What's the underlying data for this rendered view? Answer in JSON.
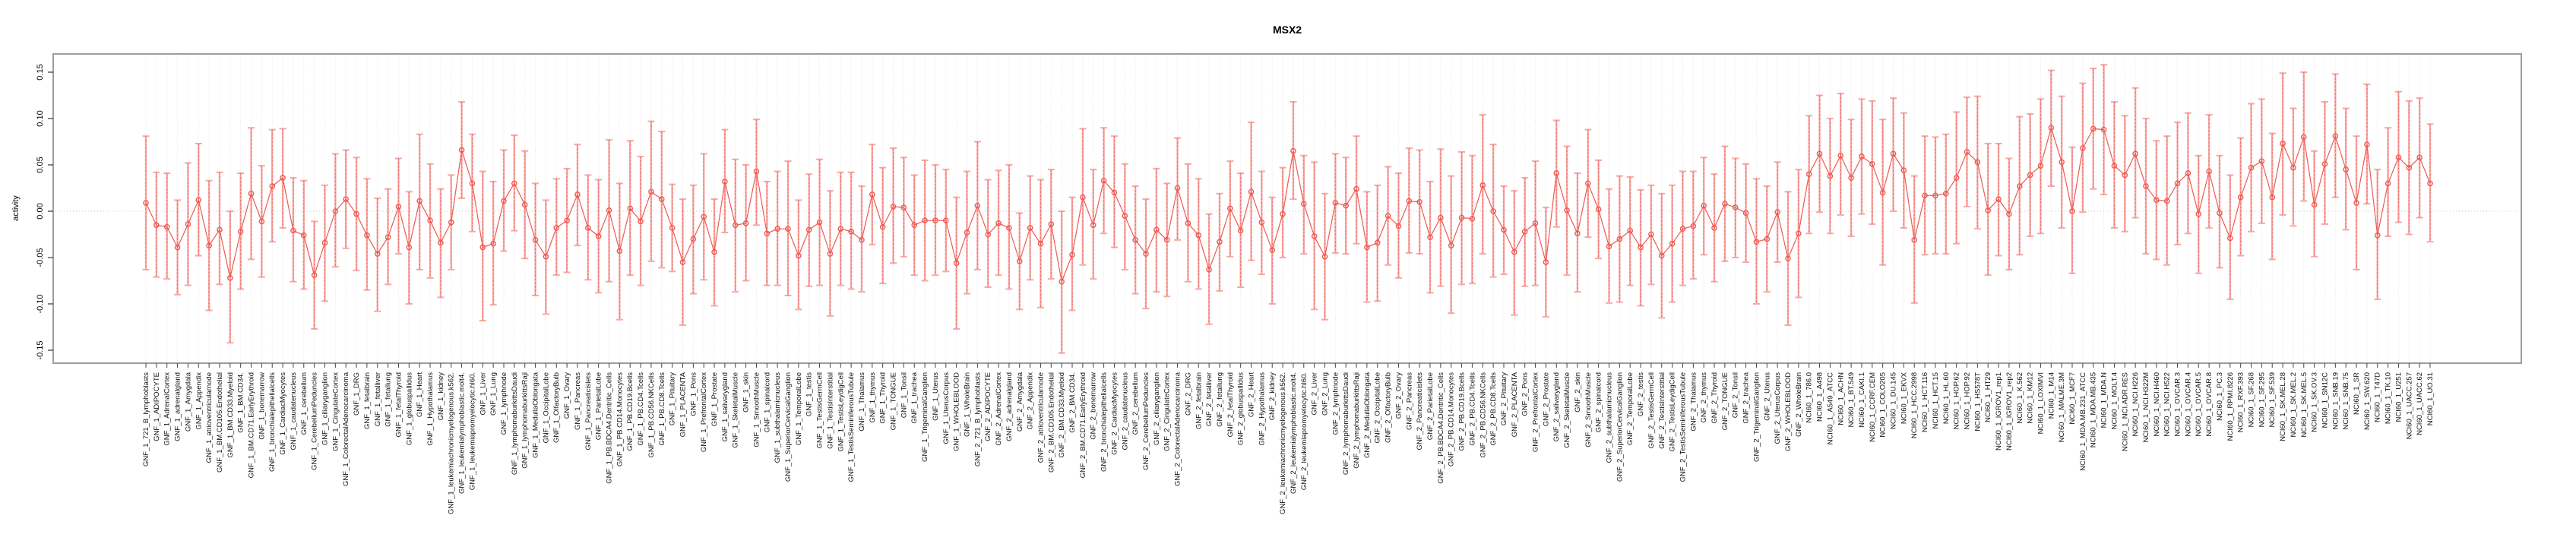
{
  "title": "MSX2",
  "chart_data": {
    "type": "scatter",
    "subtype": "point-estimates-with-error-bars",
    "title": "MSX2",
    "xlabel": "",
    "ylabel": "activity",
    "ylim": [
      -0.17,
      0.17
    ],
    "yticks": [
      "0.15",
      "0.10",
      "0.05",
      "0.00",
      "-0.05",
      "-0.10",
      "-0.15"
    ],
    "ytick_values": [
      0.15,
      0.1,
      0.05,
      0.0,
      -0.05,
      -0.1,
      -0.15
    ],
    "grid": "dotted vertical line per category; dotted horizontal line at 0",
    "legend_position": "none",
    "point_color": "#ee5a52",
    "bar_color": "#f7a8a4",
    "stem_color": "#ef655e",
    "grid_color": "#dedede",
    "zero_line_color": "#c6c6c6",
    "box_color": "#9e9e9e",
    "categories": [
      "GNF_1_721_B_lymphoblasts",
      "GNF_1_ADIPOCYTE",
      "GNF_1_AdrenalCortex",
      "GNF_1_adrenalgland",
      "GNF_1_Amygdala",
      "GNF_1_Appendix",
      "GNF_1_atrioventricularnode",
      "GNF_1_BM.CD105.Endothelial",
      "GNF_1_BM.CD33.Myeloid",
      "GNF_1_BM.CD34.",
      "GNF_1_BM.CD71.EarlyErythroid",
      "GNF_1_bonemarrow",
      "GNF_1_bronchialepithelialcells",
      "GNF_1_CardiacMyocytes",
      "GNF_1_caudatenucleus",
      "GNF_1_cerebellum",
      "GNF_1_CerebellumPeduncles",
      "GNF_1_ciliaryganglion",
      "GNF_1_CingulateCortex",
      "GNF_1_ColorectalAdenocarcinoma",
      "GNF_1_DRG",
      "GNF_1_fetalbrain",
      "GNF_1_fetalliver",
      "GNF_1_fetallung",
      "GNF_1_fetalThyroid",
      "GNF_1_globuspallidus",
      "GNF_1_Heart",
      "GNF_1_Hypothalamus",
      "GNF_1_kidney",
      "GNF_1_leukemiachronicmyelogenous.k562.",
      "GNF_1_leukemialymphoblastic.molt4.",
      "GNF_1_leukemiapromyelocytic.hl60.",
      "GNF_1_Liver",
      "GNF_1_Lung",
      "GNF_1_lymphnode",
      "GNF_1_lymphomaburkittsDaudi",
      "GNF_1_lymphomaburkittsRaji",
      "GNF_1_MedullaOblongata",
      "GNF_1_OccipitalLobe",
      "GNF_1_OlfactoryBulb",
      "GNF_1_Ovary",
      "GNF_1_Pancreas",
      "GNF_1_Pancreaticislets",
      "GNF_1_ParietalLobe",
      "GNF_1_PB.BDCA4.Dentritic_Cells",
      "GNF_1_PB.CD14.Monocytes",
      "GNF_1_PB.CD19.Bcells",
      "GNF_1_PB.CD4.Tcells",
      "GNF_1_PB.CD56.NKCells",
      "GNF_1_PB.CD8.Tcells",
      "GNF_1_Pituitary",
      "GNF_1_PLACENTA",
      "GNF_1_Pons",
      "GNF_1_PrefrontalCortex",
      "GNF_1_Prostate",
      "GNF_1_salivarygland",
      "GNF_1_SkeletalMuscle",
      "GNF_1_skin",
      "GNF_1_SmoothMuscle",
      "GNF_1_spinalcord",
      "GNF_1_subthalamicnucleus",
      "GNF_1_SuperiorCervicalGanglion",
      "GNF_1_TemporalLobe",
      "GNF_1_testis",
      "GNF_1_TestisGermCell",
      "GNF_1_TestisInterstitial",
      "GNF_1_TestisLeydigCell",
      "GNF_1_TestisSeminiferousTubule",
      "GNF_1_Thalamus",
      "GNF_1_thymus",
      "GNF_1_Thyroid",
      "GNF_1_TONGUE",
      "GNF_1_Tonsil",
      "GNF_1_trachea",
      "GNF_1_TrigeminalGanglion",
      "GNF_1_Uterus",
      "GNF_1_UterusCorpus",
      "GNF_1_WHOLEBLOOD",
      "GNF_1_WholeBrain",
      "GNF_2_721_B_lymphoblasts",
      "GNF_2_ADIPOCYTE",
      "GNF_2_AdrenalCortex",
      "GNF_2_adrenalgland",
      "GNF_2_Amygdala",
      "GNF_2_Appendix",
      "GNF_2_atrioventricularnode",
      "GNF_2_BM.CD105.Endothelial",
      "GNF_2_BM.CD33.Myeloid",
      "GNF_2_BM.CD34.",
      "GNF_2_BM.CD71.EarlyErythroid",
      "GNF_2_bonemarrow",
      "GNF_2_bronchialepithelialcells",
      "GNF_2_CardiacMyocytes",
      "GNF_2_caudatenucleus",
      "GNF_2_cerebellum",
      "GNF_2_CerebellumPeduncles",
      "GNF_2_ciliaryganglion",
      "GNF_2_CingulateCortex",
      "GNF_2_ColorectalAdenocarcinoma",
      "GNF_2_DRG",
      "GNF_2_fetalbrain",
      "GNF_2_fetalliver",
      "GNF_2_fetallung",
      "GNF_2_fetalThyroid",
      "GNF_2_globuspallidus",
      "GNF_2_Heart",
      "GNF_2_Hypothalamus",
      "GNF_2_kidney",
      "GNF_2_leukemiachronicmyelogenous.k562.",
      "GNF_2_leukemialymphoblastic.molt4.",
      "GNF_2_leukemiapromyelocytic.hl60.",
      "GNF_2_Liver",
      "GNF_2_Lung",
      "GNF_2_lymphnode",
      "GNF_2_lymphomaburkittsDaudi",
      "GNF_2_lymphomaburkittsRaji",
      "GNF_2_MedullaOblongata",
      "GNF_2_OccipitalLobe",
      "GNF_2_OlfactoryBulb",
      "GNF_2_Ovary",
      "GNF_2_Pancreas",
      "GNF_2_Pancreaticislets",
      "GNF_2_ParietalLobe",
      "GNF_2_PB.BDCA4.Dentritic_Cells",
      "GNF_2_PB.CD14.Monocytes",
      "GNF_2_PB.CD19.Bcells",
      "GNF_2_PB.CD4.Tcells",
      "GNF_2_PB.CD56.NKCells",
      "GNF_2_PB.CD8.Tcells",
      "GNF_2_Pituitary",
      "GNF_2_PLACENTA",
      "GNF_2_Pons",
      "GNF_2_PrefrontalCortex",
      "GNF_2_Prostate",
      "GNF_2_salivarygland",
      "GNF_2_SkeletalMuscle",
      "GNF_2_skin",
      "GNF_2_SmoothMuscle",
      "GNF_2_spinalcord",
      "GNF_2_subthalamicnucleus",
      "GNF_2_SuperiorCervicalGanglion",
      "GNF_2_TemporalLobe",
      "GNF_2_testis",
      "GNF_2_TestisGermCell",
      "GNF_2_TestisInterstitial",
      "GNF_2_TestisLeydigCell",
      "GNF_2_TestisSeminiferousTubule",
      "GNF_2_Thalamus",
      "GNF_2_thymus",
      "GNF_2_Thyroid",
      "GNF_2_TONGUE",
      "GNF_2_Tonsil",
      "GNF_2_trachea",
      "GNF_2_TrigeminalGanglion",
      "GNF_2_Uterus",
      "GNF_2_UterusCorpus",
      "GNF_2_WHOLEBLOOD",
      "GNF_2_WholeBrain",
      "NCI60_1_786.0",
      "NCI60_1_A498",
      "NCI60_1_A549_ATCC",
      "NCI60_1_ACHN",
      "NCI60_1_BT.549",
      "NCI60_1_CAKI.1",
      "NCI60_1_CCRF.CEM",
      "NCI60_1_COLO205",
      "NCI60_1_DU.145",
      "NCI60_1_EKVX",
      "NCI60_1_HCC.2998",
      "NCI60_1_HCT.116",
      "NCI60_1_HCT.15",
      "NCI60_1_HL.60",
      "NCI60_1_HOP.62",
      "NCI60_1_HOP.92",
      "NCI60_1_HS578T",
      "NCI60_1_HT29",
      "NCI60_1_IGROV1_rep1",
      "NCI60_1_IGROV1_rep2",
      "NCI60_1_K.562",
      "NCI60_1_KM12",
      "NCI60_1_LOXIMVI",
      "NCI60_1_M14",
      "NCI60_1_MALME.3M",
      "NCI60_1_MCF7",
      "NCI60_1_MDA.MB.231_ATCC",
      "NCI60_1_MDA.MB.435",
      "NCI60_1_MDA.N",
      "NCI60_1_MOLT.4",
      "NCI60_1_NCI.ADR.RES",
      "NCI60_1_NCI.H226",
      "NCI60_1_NCI.H322M",
      "NCI60_1_NCI.H460",
      "NCI60_1_NCI.H522",
      "NCI60_1_OVCAR.3",
      "NCI60_1_OVCAR.4",
      "NCI60_1_OVCAR.5",
      "NCI60_1_OVCAR.8",
      "NCI60_1_PC.3",
      "NCI60_1_RPMI.8226",
      "NCI60_1_RXF.393",
      "NCI60_1_SF.268",
      "NCI60_1_SF.295",
      "NCI60_1_SF.539",
      "NCI60_1_SK.MEL.28",
      "NCI60_1_SK.MEL.2",
      "NCI60_1_SK.MEL.5",
      "NCI60_1_SK.OV.3",
      "NCI60_1_SN12C",
      "NCI60_1_SNB.19",
      "NCI60_1_SNB.75",
      "NCI60_1_SR",
      "NCI60_1_SW.620",
      "NCI60_1_T47D",
      "NCI60_1_TK.10",
      "NCI60_1_U251",
      "NCI60_1_UACC.257",
      "NCI60_1_UACC.62",
      "NCI60_1_UO.31"
    ],
    "values": [
      0.009,
      -0.015,
      -0.017,
      -0.039,
      -0.014,
      0.012,
      -0.037,
      -0.02,
      -0.072,
      -0.022,
      0.019,
      -0.011,
      0.027,
      0.036,
      -0.021,
      -0.026,
      -0.069,
      -0.034,
      0.0,
      0.013,
      -0.003,
      -0.026,
      -0.046,
      -0.028,
      0.005,
      -0.039,
      0.011,
      -0.01,
      -0.034,
      -0.012,
      0.066,
      0.03,
      -0.039,
      -0.035,
      0.011,
      0.03,
      0.007,
      -0.031,
      -0.049,
      -0.018,
      -0.01,
      0.018,
      -0.018,
      -0.027,
      0.001,
      -0.043,
      0.003,
      -0.011,
      0.021,
      0.013,
      -0.018,
      -0.055,
      -0.03,
      -0.006,
      -0.044,
      0.032,
      -0.015,
      -0.013,
      0.043,
      -0.024,
      -0.019,
      -0.019,
      -0.048,
      -0.02,
      -0.012,
      -0.046,
      -0.019,
      -0.022,
      -0.031,
      0.018,
      -0.017,
      0.005,
      0.004,
      -0.015,
      -0.01,
      -0.01,
      -0.01,
      -0.056,
      -0.023,
      0.006,
      -0.025,
      -0.013,
      -0.018,
      -0.054,
      -0.018,
      -0.035,
      -0.014,
      -0.076,
      -0.047,
      0.015,
      -0.015,
      0.033,
      0.02,
      -0.005,
      -0.031,
      -0.046,
      -0.02,
      -0.031,
      0.025,
      -0.013,
      -0.026,
      -0.063,
      -0.033,
      0.003,
      -0.021,
      0.021,
      -0.012,
      -0.042,
      -0.003,
      0.065,
      0.008,
      -0.027,
      -0.049,
      0.009,
      0.006,
      0.024,
      -0.039,
      -0.034,
      -0.005,
      -0.016,
      0.011,
      0.01,
      -0.028,
      -0.007,
      -0.037,
      -0.007,
      -0.008,
      0.028,
      0.0,
      -0.02,
      -0.044,
      -0.022,
      -0.013,
      -0.055,
      0.041,
      0.001,
      -0.024,
      0.03,
      0.002,
      -0.038,
      -0.03,
      -0.021,
      -0.039,
      -0.025,
      -0.048,
      -0.035,
      -0.019,
      -0.016,
      0.006,
      -0.018,
      0.008,
      0.004,
      -0.002,
      -0.033,
      -0.03,
      -0.001,
      -0.051,
      -0.024,
      0.04,
      0.062,
      0.038,
      0.06,
      0.036,
      0.059,
      0.051,
      0.02,
      0.062,
      0.044,
      -0.031,
      0.017,
      0.017,
      0.019,
      0.036,
      0.064,
      0.053,
      0.001,
      0.013,
      -0.003,
      0.027,
      0.039,
      0.049,
      0.09,
      0.053,
      0.0,
      0.068,
      0.089,
      0.088,
      0.049,
      0.039,
      0.062,
      0.027,
      0.012,
      0.011,
      0.03,
      0.041,
      -0.003,
      0.043,
      -0.002,
      -0.029,
      0.015,
      0.047,
      0.054,
      0.015,
      0.073,
      0.047,
      0.08,
      0.007,
      0.051,
      0.081,
      0.045,
      0.009,
      0.072,
      -0.026,
      0.03,
      0.058,
      0.047,
      0.058,
      0.03
    ],
    "lower": [
      -0.063,
      -0.071,
      -0.073,
      -0.09,
      -0.08,
      -0.048,
      -0.107,
      -0.079,
      -0.142,
      -0.084,
      -0.052,
      -0.071,
      -0.033,
      -0.018,
      -0.076,
      -0.084,
      -0.127,
      -0.097,
      -0.06,
      -0.04,
      -0.064,
      -0.085,
      -0.108,
      -0.079,
      -0.046,
      -0.1,
      -0.063,
      -0.072,
      -0.093,
      -0.063,
      0.014,
      -0.022,
      -0.118,
      -0.101,
      -0.043,
      -0.021,
      -0.051,
      -0.091,
      -0.111,
      -0.069,
      -0.066,
      -0.037,
      -0.074,
      -0.088,
      -0.076,
      -0.117,
      -0.069,
      -0.08,
      -0.054,
      -0.061,
      -0.065,
      -0.123,
      -0.089,
      -0.074,
      -0.102,
      -0.023,
      -0.087,
      -0.075,
      -0.015,
      -0.08,
      -0.08,
      -0.091,
      -0.106,
      -0.081,
      -0.08,
      -0.113,
      -0.08,
      -0.084,
      -0.087,
      -0.036,
      -0.078,
      -0.056,
      -0.049,
      -0.069,
      -0.075,
      -0.069,
      -0.065,
      -0.127,
      -0.089,
      -0.063,
      -0.082,
      -0.069,
      -0.084,
      -0.106,
      -0.074,
      -0.104,
      -0.073,
      -0.153,
      -0.107,
      -0.058,
      -0.073,
      -0.024,
      -0.039,
      -0.063,
      -0.089,
      -0.105,
      -0.087,
      -0.092,
      -0.031,
      -0.076,
      -0.084,
      -0.122,
      -0.086,
      -0.049,
      -0.082,
      -0.053,
      -0.068,
      -0.1,
      -0.05,
      0.013,
      -0.046,
      -0.106,
      -0.117,
      -0.045,
      -0.046,
      -0.035,
      -0.098,
      -0.097,
      -0.058,
      -0.072,
      -0.045,
      -0.046,
      -0.088,
      -0.081,
      -0.11,
      -0.079,
      -0.078,
      -0.046,
      -0.071,
      -0.068,
      -0.112,
      -0.081,
      -0.08,
      -0.114,
      -0.017,
      -0.069,
      -0.087,
      -0.028,
      -0.051,
      -0.099,
      -0.098,
      -0.08,
      -0.102,
      -0.079,
      -0.115,
      -0.098,
      -0.08,
      -0.073,
      -0.047,
      -0.076,
      -0.054,
      -0.05,
      -0.055,
      -0.1,
      -0.087,
      -0.055,
      -0.123,
      -0.093,
      -0.024,
      -0.001,
      -0.024,
      -0.004,
      -0.027,
      -0.003,
      -0.014,
      -0.058,
      0.0,
      -0.018,
      -0.099,
      -0.047,
      -0.046,
      -0.046,
      -0.035,
      0.005,
      -0.019,
      -0.069,
      -0.048,
      -0.063,
      -0.047,
      -0.027,
      -0.024,
      0.027,
      -0.018,
      -0.067,
      -0.001,
      0.024,
      0.018,
      -0.018,
      -0.022,
      -0.007,
      -0.046,
      -0.052,
      -0.058,
      -0.036,
      -0.024,
      -0.067,
      -0.018,
      -0.061,
      -0.095,
      -0.048,
      -0.022,
      -0.013,
      -0.052,
      -0.004,
      -0.016,
      0.011,
      -0.049,
      -0.014,
      0.015,
      -0.02,
      -0.063,
      0.008,
      -0.095,
      -0.027,
      -0.012,
      -0.025,
      -0.007,
      -0.033
    ],
    "upper": [
      0.081,
      0.042,
      0.041,
      0.012,
      0.052,
      0.073,
      0.033,
      0.042,
      0.0,
      0.041,
      0.09,
      0.049,
      0.088,
      0.089,
      0.036,
      0.033,
      -0.011,
      0.028,
      0.062,
      0.066,
      0.058,
      0.035,
      0.014,
      0.024,
      0.057,
      0.021,
      0.083,
      0.051,
      0.024,
      0.039,
      0.118,
      0.083,
      0.043,
      0.032,
      0.066,
      0.082,
      0.065,
      0.03,
      0.012,
      0.035,
      0.046,
      0.072,
      0.039,
      0.034,
      0.077,
      0.03,
      0.076,
      0.059,
      0.097,
      0.086,
      0.029,
      0.013,
      0.028,
      0.062,
      0.013,
      0.088,
      0.056,
      0.05,
      0.099,
      0.032,
      0.043,
      0.054,
      0.012,
      0.04,
      0.056,
      0.022,
      0.042,
      0.042,
      0.027,
      0.072,
      0.047,
      0.068,
      0.058,
      0.039,
      0.055,
      0.05,
      0.045,
      0.015,
      0.043,
      0.075,
      0.034,
      0.044,
      0.05,
      -0.002,
      0.038,
      0.034,
      0.045,
      0.0,
      0.015,
      0.089,
      0.045,
      0.09,
      0.081,
      0.051,
      0.027,
      0.013,
      0.046,
      0.03,
      0.079,
      0.051,
      0.035,
      -0.003,
      0.019,
      0.054,
      0.041,
      0.096,
      0.043,
      0.015,
      0.047,
      0.118,
      0.06,
      0.053,
      0.019,
      0.062,
      0.058,
      0.081,
      0.021,
      0.028,
      0.048,
      0.041,
      0.068,
      0.066,
      0.032,
      0.067,
      0.038,
      0.064,
      0.06,
      0.104,
      0.072,
      0.027,
      0.022,
      0.036,
      0.054,
      0.004,
      0.098,
      0.07,
      0.041,
      0.088,
      0.055,
      0.024,
      0.038,
      0.037,
      0.023,
      0.028,
      0.019,
      0.028,
      0.043,
      0.043,
      0.058,
      0.04,
      0.07,
      0.057,
      0.051,
      0.035,
      0.027,
      0.053,
      0.021,
      0.045,
      0.103,
      0.125,
      0.1,
      0.127,
      0.099,
      0.121,
      0.119,
      0.099,
      0.122,
      0.106,
      0.038,
      0.081,
      0.08,
      0.083,
      0.107,
      0.123,
      0.124,
      0.073,
      0.073,
      0.057,
      0.102,
      0.105,
      0.121,
      0.152,
      0.124,
      0.069,
      0.138,
      0.154,
      0.158,
      0.118,
      0.103,
      0.133,
      0.1,
      0.076,
      0.081,
      0.096,
      0.106,
      0.06,
      0.104,
      0.06,
      0.039,
      0.079,
      0.116,
      0.121,
      0.084,
      0.149,
      0.111,
      0.15,
      0.065,
      0.118,
      0.148,
      0.111,
      0.081,
      0.137,
      0.045,
      0.09,
      0.129,
      0.119,
      0.122,
      0.094
    ]
  }
}
